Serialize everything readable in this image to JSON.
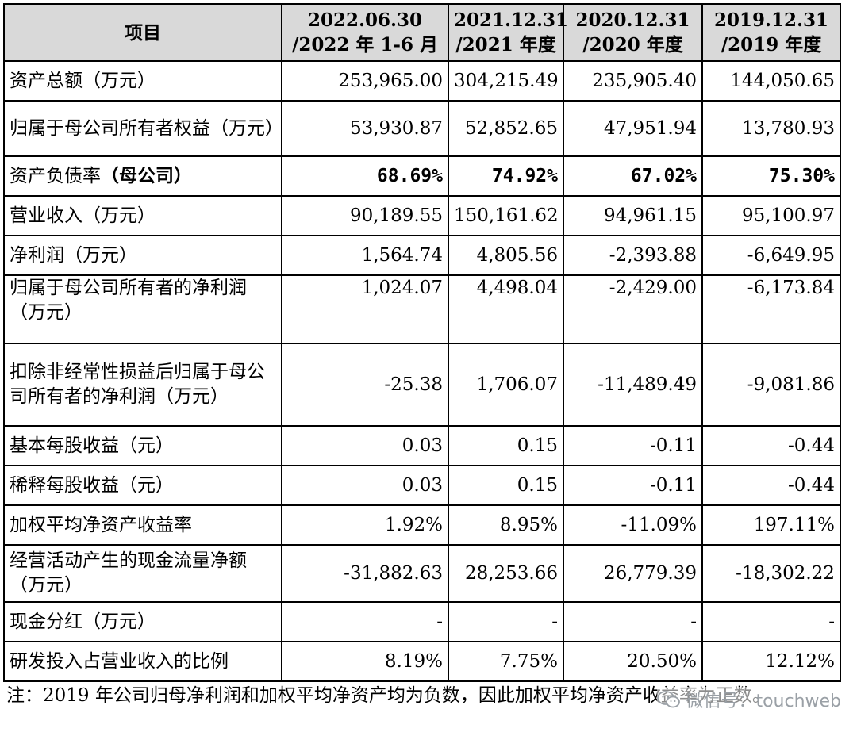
{
  "header": {
    "item": "项目",
    "periods": [
      {
        "line1": "2022.06.30",
        "line2": "/2022 年 1-6 月"
      },
      {
        "line1": "2021.12.31",
        "line2": "/2021 年度"
      },
      {
        "line1": "2020.12.31",
        "line2": "/2020 年度"
      },
      {
        "line1": "2019.12.31",
        "line2": "/2019 年度"
      }
    ]
  },
  "rows": [
    {
      "label": "资产总额（万元）",
      "values": [
        "253,965.00",
        "304,215.49",
        "235,905.40",
        "144,050.65"
      ]
    },
    {
      "label": "归属于母公司所有者权益（万元）",
      "values": [
        "53,930.87",
        "52,852.65",
        "47,951.94",
        "13,780.93"
      ]
    },
    {
      "label": "资产负债率",
      "label_suffix": "（母公司）",
      "values": [
        "68.69%",
        "74.92%",
        "67.02%",
        "75.30%"
      ]
    },
    {
      "label": "营业收入（万元）",
      "values": [
        "90,189.55",
        "150,161.62",
        "94,961.15",
        "95,100.97"
      ]
    },
    {
      "label": "净利润（万元）",
      "values": [
        "1,564.74",
        "4,805.56",
        "-2,393.88",
        "-6,649.95"
      ]
    },
    {
      "label": "归属于母公司所有者的净利润（万元）",
      "values": [
        "1,024.07",
        "4,498.04",
        "-2,429.00",
        "-6,173.84"
      ]
    },
    {
      "label": "扣除非经常性损益后归属于母公司所有者的净利润（万元）",
      "values": [
        "-25.38",
        "1,706.07",
        "-11,489.49",
        "-9,081.86"
      ]
    },
    {
      "label": "基本每股收益（元）",
      "values": [
        "0.03",
        "0.15",
        "-0.11",
        "-0.44"
      ]
    },
    {
      "label": "稀释每股收益（元）",
      "values": [
        "0.03",
        "0.15",
        "-0.11",
        "-0.44"
      ]
    },
    {
      "label": "加权平均净资产收益率",
      "values": [
        "1.92%",
        "8.95%",
        "-11.09%",
        "197.11%"
      ]
    },
    {
      "label": "经营活动产生的现金流量净额（万元）",
      "values": [
        "-31,882.63",
        "28,253.66",
        "26,779.39",
        "-18,302.22"
      ]
    },
    {
      "label": "现金分红（万元）",
      "values": [
        "-",
        "-",
        "-",
        "-"
      ]
    },
    {
      "label": "研发投入占营业收入的比例",
      "values": [
        "8.19%",
        "7.75%",
        "20.50%",
        "12.12%"
      ]
    }
  ],
  "note": "注：2019 年公司归母净利润和加权平均净资产均为负数，因此加权平均净资产收益率为正数。",
  "watermark": {
    "text": "微信号：touchweb",
    "icon": "wechat-icon"
  }
}
